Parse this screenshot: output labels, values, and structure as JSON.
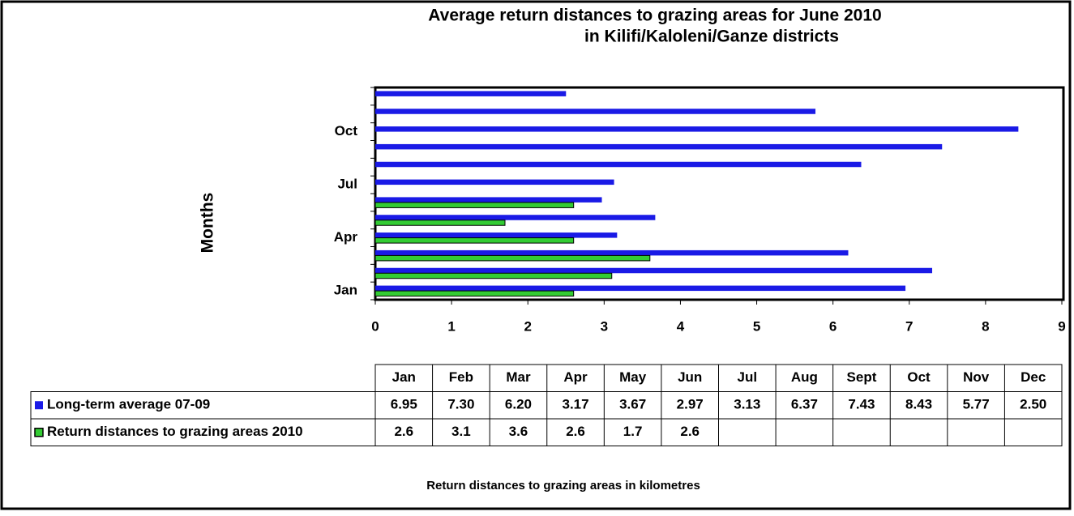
{
  "chart_data": {
    "type": "barh",
    "title": [
      "Average return distances to grazing areas for June 2010",
      "in Kilifi/Kaloleni/Ganze districts"
    ],
    "y_label": "Months",
    "x_label": "Return distances to grazing areas in kilometres",
    "categories": [
      "Jan",
      "Feb",
      "Mar",
      "Apr",
      "May",
      "Jun",
      "Jul",
      "Aug",
      "Sept",
      "Oct",
      "Nov",
      "Dec"
    ],
    "series": [
      {
        "name": "Long-term average 07-09",
        "color": "#1a1ae6",
        "values": [
          6.95,
          7.3,
          6.2,
          3.17,
          3.67,
          2.97,
          3.13,
          6.37,
          7.43,
          8.43,
          5.77,
          2.5
        ],
        "value_labels": [
          "6.95",
          "7.30",
          "6.20",
          "3.17",
          "3.67",
          "2.97",
          "3.13",
          "6.37",
          "7.43",
          "8.43",
          "5.77",
          "2.50"
        ]
      },
      {
        "name": "Return distances to grazing areas 2010",
        "color": "#33cc33",
        "values": [
          2.6,
          3.1,
          3.6,
          2.6,
          1.7,
          2.6,
          null,
          null,
          null,
          null,
          null,
          null
        ]
      }
    ],
    "xlim": [
      0,
      9
    ],
    "xticks": [
      0,
      1,
      2,
      3,
      4,
      5,
      6,
      7,
      8,
      9
    ]
  }
}
